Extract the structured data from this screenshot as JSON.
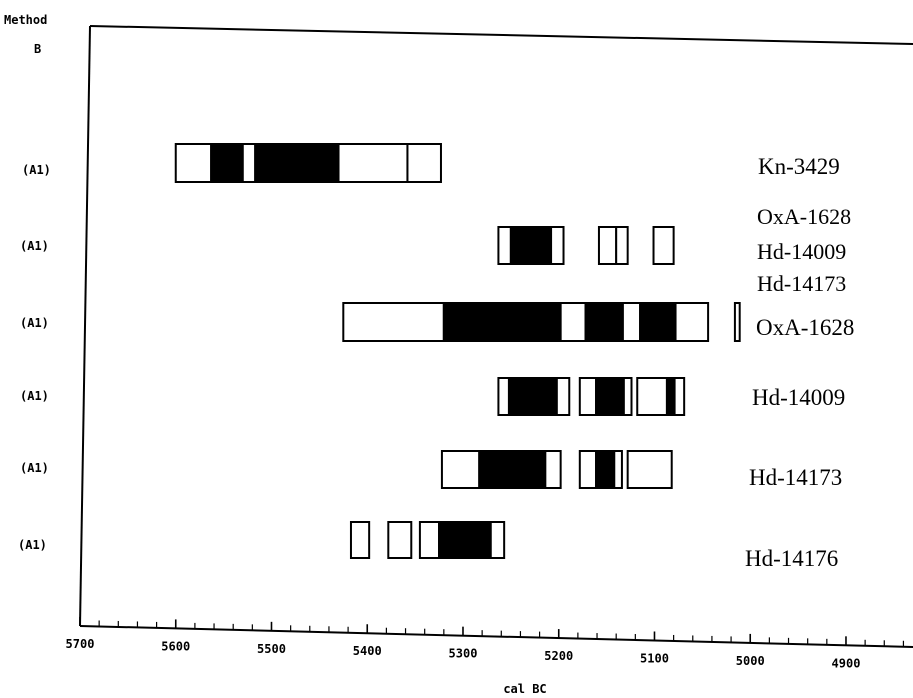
{
  "header": {
    "line1": "Method",
    "line2": "B"
  },
  "chart_data": {
    "type": "range",
    "xlabel": "cal BC",
    "x_direction": "reversed",
    "xlim": [
      5700,
      4830
    ],
    "x_ticks": [
      5700,
      5600,
      5500,
      5400,
      5300,
      5200,
      5100,
      5000,
      4900
    ],
    "x_tick_labels": [
      "5700",
      "5600",
      "5500",
      "5400",
      "5300",
      "5200",
      "5100",
      "5000",
      "4900"
    ],
    "minor_tick_step": 20,
    "combined_labels": [
      "OxA-1628",
      "Hd-14009",
      "Hd-14173"
    ],
    "rows": [
      {
        "row_label": "(A1)",
        "sample": "Kn-3429",
        "segments": [
          {
            "from": 5600,
            "to": 5563,
            "fill": "open"
          },
          {
            "from": 5563,
            "to": 5530,
            "fill": "solid"
          },
          {
            "from": 5530,
            "to": 5517,
            "fill": "open"
          },
          {
            "from": 5517,
            "to": 5430,
            "fill": "solid"
          },
          {
            "from": 5430,
            "to": 5358,
            "fill": "open"
          },
          {
            "from": 5358,
            "to": 5323,
            "fill": "open"
          }
        ]
      },
      {
        "row_label": "(A1)",
        "sample": "",
        "segments": [
          {
            "from": 5263,
            "to": 5250,
            "fill": "open"
          },
          {
            "from": 5250,
            "to": 5208,
            "fill": "solid"
          },
          {
            "from": 5208,
            "to": 5195,
            "fill": "open"
          },
          {
            "from": 5158,
            "to": 5140,
            "fill": "open"
          },
          {
            "from": 5140,
            "to": 5128,
            "fill": "open"
          },
          {
            "from": 5101,
            "to": 5080,
            "fill": "open"
          }
        ]
      },
      {
        "row_label": "(A1)",
        "sample": "OxA-1628",
        "segments": [
          {
            "from": 5425,
            "to": 5320,
            "fill": "open"
          },
          {
            "from": 5320,
            "to": 5198,
            "fill": "solid"
          },
          {
            "from": 5198,
            "to": 5172,
            "fill": "open"
          },
          {
            "from": 5172,
            "to": 5133,
            "fill": "solid"
          },
          {
            "from": 5133,
            "to": 5115,
            "fill": "open"
          },
          {
            "from": 5115,
            "to": 5078,
            "fill": "solid"
          },
          {
            "from": 5078,
            "to": 5044,
            "fill": "open"
          },
          {
            "from": 5016,
            "to": 5011,
            "fill": "open"
          }
        ]
      },
      {
        "row_label": "(A1)",
        "sample": "Hd-14009",
        "segments": [
          {
            "from": 5263,
            "to": 5252,
            "fill": "open"
          },
          {
            "from": 5252,
            "to": 5202,
            "fill": "solid"
          },
          {
            "from": 5202,
            "to": 5189,
            "fill": "open"
          },
          {
            "from": 5178,
            "to": 5161,
            "fill": "open"
          },
          {
            "from": 5161,
            "to": 5132,
            "fill": "solid"
          },
          {
            "from": 5132,
            "to": 5124,
            "fill": "open"
          },
          {
            "from": 5118,
            "to": 5087,
            "fill": "open"
          },
          {
            "from": 5087,
            "to": 5079,
            "fill": "solid"
          },
          {
            "from": 5079,
            "to": 5069,
            "fill": "open"
          }
        ]
      },
      {
        "row_label": "(A1)",
        "sample": "Hd-14173",
        "segments": [
          {
            "from": 5322,
            "to": 5283,
            "fill": "open"
          },
          {
            "from": 5283,
            "to": 5214,
            "fill": "solid"
          },
          {
            "from": 5214,
            "to": 5198,
            "fill": "open"
          },
          {
            "from": 5178,
            "to": 5161,
            "fill": "open"
          },
          {
            "from": 5161,
            "to": 5142,
            "fill": "solid"
          },
          {
            "from": 5142,
            "to": 5134,
            "fill": "open"
          },
          {
            "from": 5128,
            "to": 5082,
            "fill": "open"
          }
        ]
      },
      {
        "row_label": "(A1)",
        "sample": "Hd-14176",
        "segments": [
          {
            "from": 5417,
            "to": 5398,
            "fill": "open"
          },
          {
            "from": 5378,
            "to": 5354,
            "fill": "open"
          },
          {
            "from": 5345,
            "to": 5325,
            "fill": "open"
          },
          {
            "from": 5325,
            "to": 5271,
            "fill": "solid"
          },
          {
            "from": 5271,
            "to": 5257,
            "fill": "open"
          }
        ]
      }
    ]
  }
}
